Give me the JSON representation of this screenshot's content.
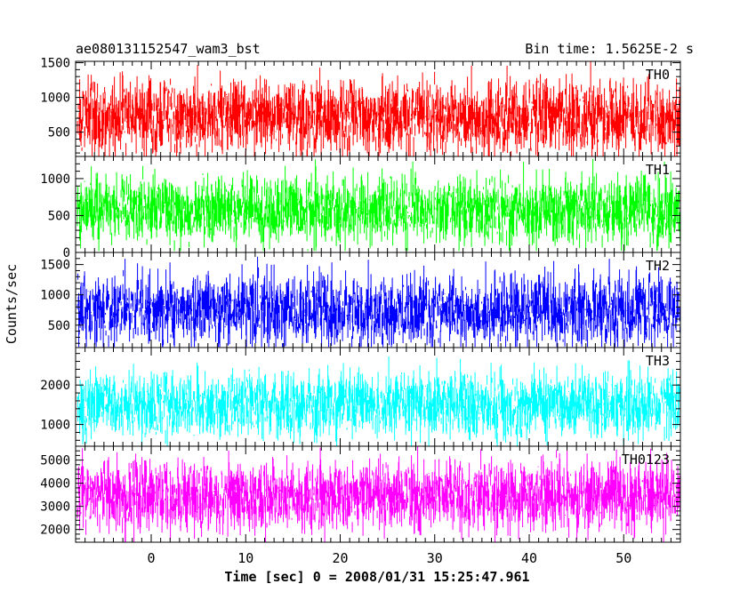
{
  "header": {
    "title": "ae080131152547_wam3_bst",
    "bin_time": "Bin time: 1.5625E-2 s"
  },
  "axes": {
    "ylabel": "Counts/sec",
    "xlabel": "Time [sec] 0 = 2008/01/31 15:25:47.961"
  },
  "chart_data": {
    "type": "line",
    "subtype": "stacked light curves (5 panels, shared x-axis)",
    "x": {
      "range": [
        -8,
        56
      ],
      "ticks": [
        0,
        10,
        20,
        30,
        40,
        50
      ],
      "minor_step": 1,
      "data_start": -7.8,
      "data_end": 56.0
    },
    "panels": [
      {
        "name": "TH0",
        "color": "#ff0000",
        "ylim": [
          150,
          1520
        ],
        "ticks": [
          500,
          1000,
          1500
        ],
        "minor_step": 100,
        "base": 720,
        "noise": 270,
        "min": 150,
        "max": 1520
      },
      {
        "name": "TH1",
        "color": "#00ff00",
        "ylim": [
          0,
          1300
        ],
        "ticks": [
          0,
          500,
          1000
        ],
        "minor_step": 100,
        "base": 580,
        "noise": 230,
        "min": 20,
        "max": 1300
      },
      {
        "name": "TH2",
        "color": "#0000ff",
        "ylim": [
          130,
          1700
        ],
        "ticks": [
          500,
          1000,
          1500
        ],
        "minor_step": 100,
        "base": 740,
        "noise": 300,
        "min": 140,
        "max": 1700
      },
      {
        "name": "TH3",
        "color": "#00ffff",
        "ylim": [
          450,
          2950
        ],
        "ticks": [
          1000,
          2000
        ],
        "minor_step": 200,
        "base": 1520,
        "noise": 420,
        "min": 460,
        "max": 2950
      },
      {
        "name": "TH0123",
        "color": "#ff00ff",
        "ylim": [
          1450,
          5600
        ],
        "ticks": [
          2000,
          3000,
          4000,
          5000
        ],
        "minor_step": 200,
        "base": 3450,
        "noise": 760,
        "min": 1450,
        "max": 5600
      }
    ]
  }
}
